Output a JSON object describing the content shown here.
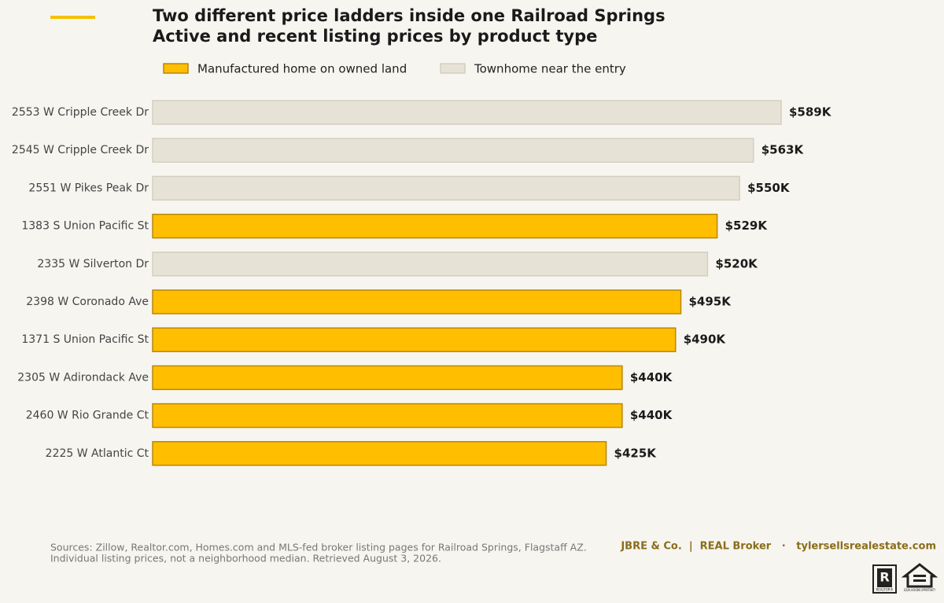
{
  "chart_data": {
    "type": "bar",
    "orientation": "horizontal",
    "title": "Two different price ladders inside one Railroad Springs",
    "subtitle": "Active and recent listing prices by product type",
    "categories": [
      "2553 W Cripple Creek Dr",
      "2545 W Cripple Creek Dr",
      "2551 W Pikes Peak Dr",
      "1383 S Union Pacific St",
      "2335 W Silverton Dr",
      "2398 W Coronado Ave",
      "1371 S Union Pacific St",
      "2305 W Adirondack Ave",
      "2460 W Rio Grande Ct",
      "2225 W Atlantic Ct"
    ],
    "series": [
      {
        "name": "Manufactured home on owned land",
        "color": "#ffbf00",
        "stroke": "#b8860b",
        "values": [
          null,
          null,
          null,
          529,
          null,
          495,
          490,
          440,
          440,
          425
        ],
        "value_labels": [
          null,
          null,
          null,
          "$529K",
          null,
          "$495K",
          "$490K",
          "$440K",
          "$440K",
          "$425K"
        ]
      },
      {
        "name": "Townhome near the entry",
        "color": "#e6e2d6",
        "stroke": "#d4cfbf",
        "values": [
          589,
          563,
          550,
          null,
          520,
          null,
          null,
          null,
          null,
          null
        ],
        "value_labels": [
          "$589K",
          "$563K",
          "$550K",
          null,
          "$520K",
          null,
          null,
          null,
          null,
          null
        ]
      }
    ],
    "legend": "top"
  },
  "footer": {
    "source": [
      "Sources: Zillow, Realtor.com, Homes.com and MLS-fed broker listing pages for Railroad Springs, Flagstaff AZ.",
      "Individual listing prices, not a neighborhood median. Retrieved August 3, 2026."
    ],
    "brand": "JBRE & Co.  |  REAL Broker   ·   tylersellsrealestate.com",
    "badges": [
      "REALTOR®",
      "EQUAL HOUSING OPPORTUNITY"
    ]
  }
}
